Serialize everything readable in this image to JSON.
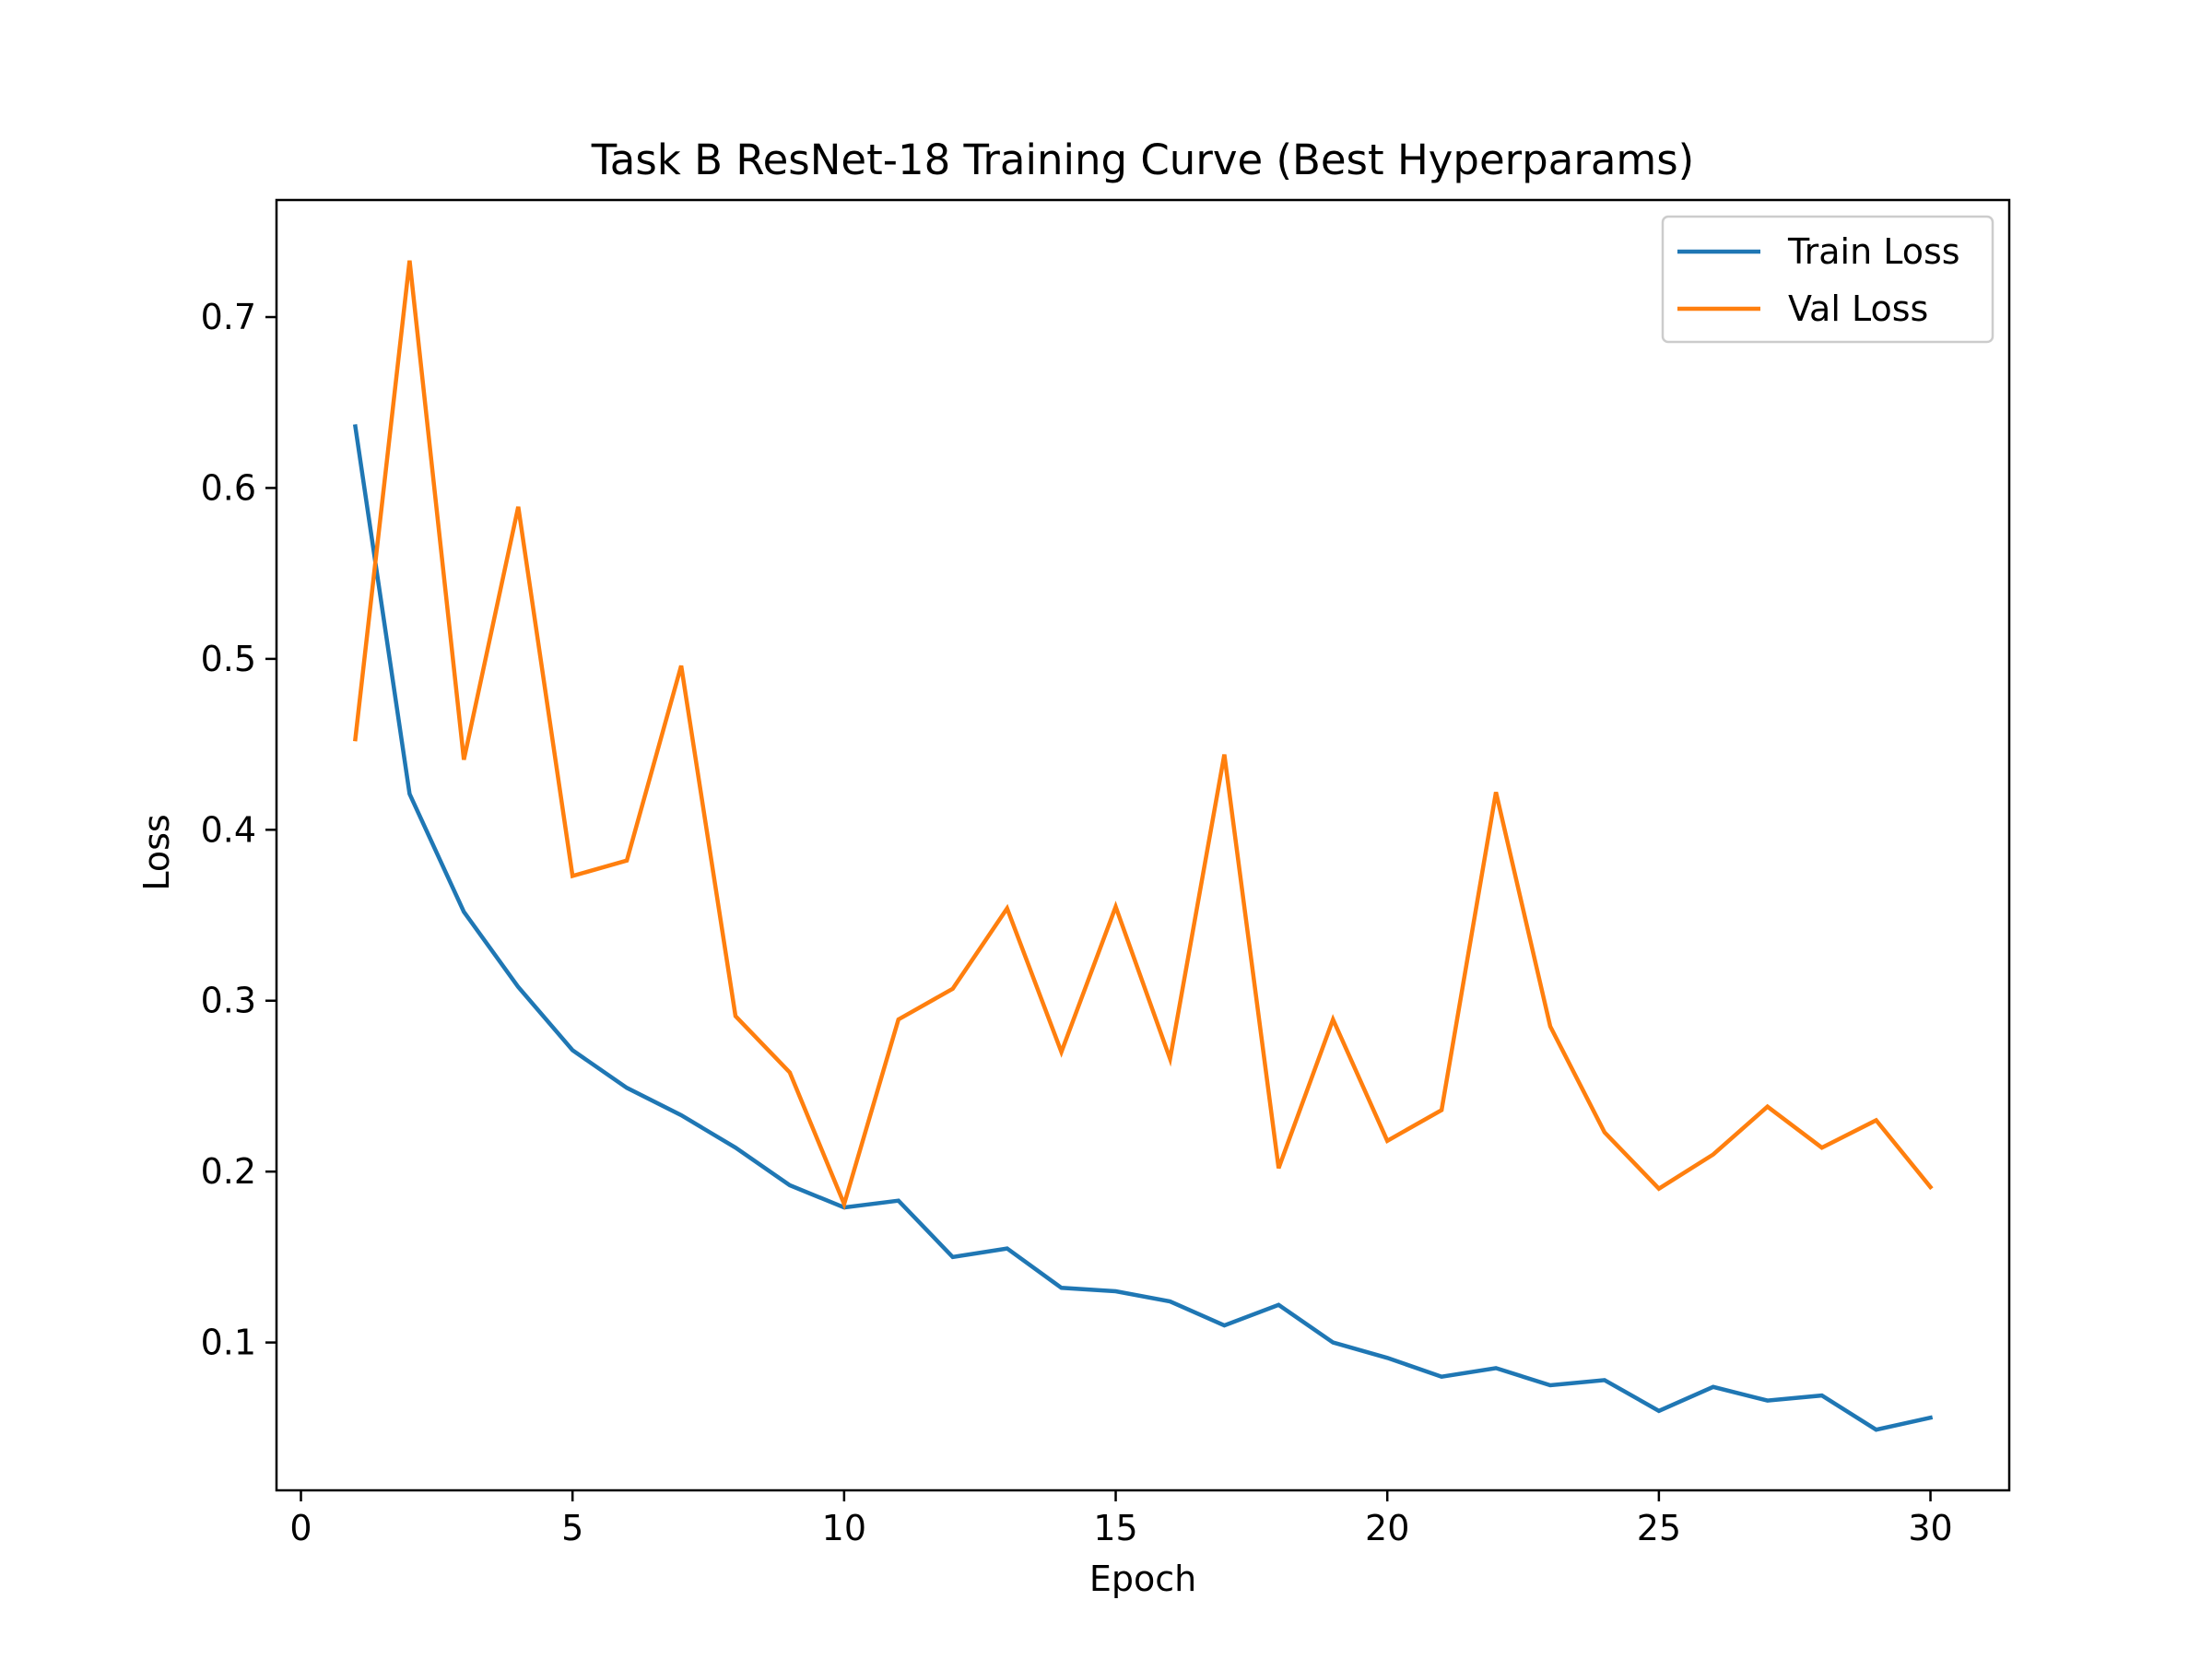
{
  "chart_data": {
    "type": "line",
    "title": "Task B ResNet-18 Training Curve (Best Hyperparams)",
    "xlabel": "Epoch",
    "ylabel": "Loss",
    "x": [
      1,
      2,
      3,
      4,
      5,
      6,
      7,
      8,
      9,
      10,
      11,
      12,
      13,
      14,
      15,
      16,
      17,
      18,
      19,
      20,
      21,
      22,
      23,
      24,
      25,
      26,
      27,
      28,
      29,
      30
    ],
    "xlim": [
      -0.45,
      31.45
    ],
    "ylim": [
      0.0135,
      0.7685
    ],
    "xticks": [
      0,
      5,
      10,
      15,
      20,
      25,
      30
    ],
    "yticks": [
      0.1,
      0.2,
      0.3,
      0.4,
      0.5,
      0.6,
      0.7
    ],
    "xtick_labels": [
      "0",
      "5",
      "10",
      "15",
      "20",
      "25",
      "30"
    ],
    "ytick_labels": [
      "0.1",
      "0.2",
      "0.3",
      "0.4",
      "0.5",
      "0.6",
      "0.7"
    ],
    "grid": false,
    "legend_position": "top-right",
    "series": [
      {
        "name": "Train Loss",
        "color": "#1f77b4",
        "values": [
          0.636,
          0.421,
          0.352,
          0.308,
          0.271,
          0.249,
          0.233,
          0.214,
          0.192,
          0.179,
          0.183,
          0.15,
          0.155,
          0.132,
          0.13,
          0.124,
          0.11,
          0.122,
          0.1,
          0.091,
          0.08,
          0.085,
          0.075,
          0.078,
          0.06,
          0.074,
          0.066,
          0.069,
          0.049,
          0.056
        ]
      },
      {
        "name": "Val Loss",
        "color": "#ff7f0e",
        "values": [
          0.453,
          0.733,
          0.441,
          0.589,
          0.373,
          0.382,
          0.496,
          0.291,
          0.258,
          0.181,
          0.289,
          0.307,
          0.354,
          0.27,
          0.355,
          0.266,
          0.444,
          0.202,
          0.289,
          0.218,
          0.236,
          0.422,
          0.285,
          0.223,
          0.19,
          0.21,
          0.238,
          0.214,
          0.23,
          0.191
        ]
      }
    ]
  }
}
